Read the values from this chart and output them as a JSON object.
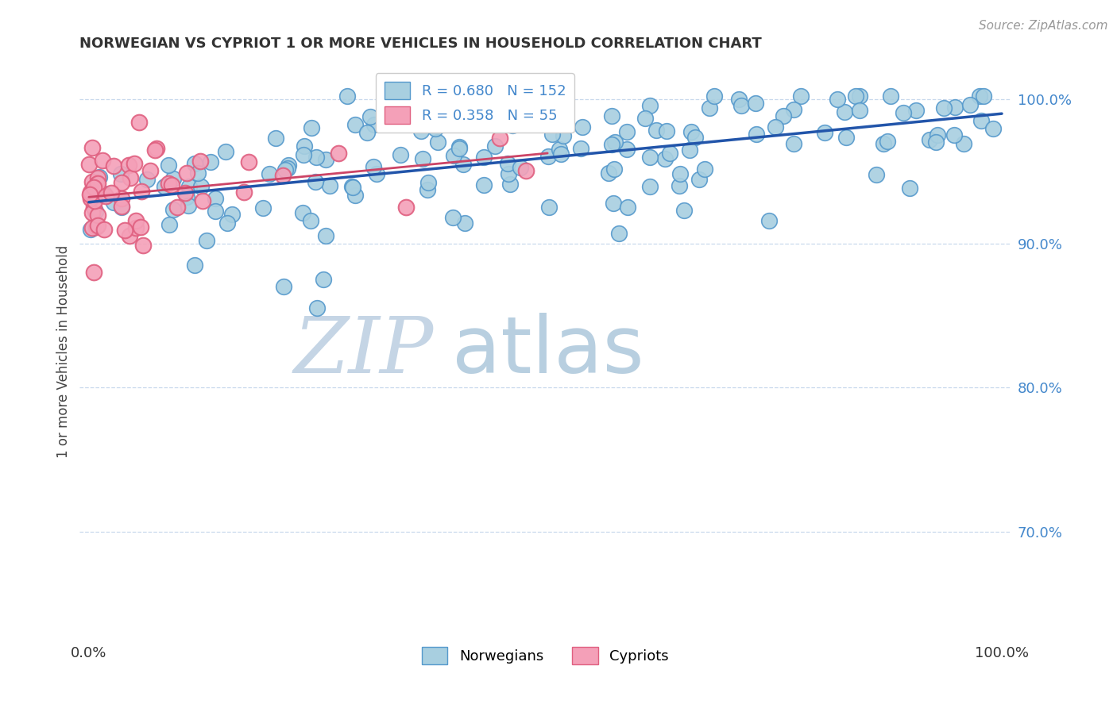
{
  "title": "NORWEGIAN VS CYPRIOT 1 OR MORE VEHICLES IN HOUSEHOLD CORRELATION CHART",
  "source_text": "Source: ZipAtlas.com",
  "ylabel": "1 or more Vehicles in Household",
  "xlim": [
    -0.01,
    1.01
  ],
  "ylim": [
    0.625,
    1.025
  ],
  "ytick_labels": [
    "70.0%",
    "80.0%",
    "90.0%",
    "100.0%"
  ],
  "ytick_values": [
    0.7,
    0.8,
    0.9,
    1.0
  ],
  "xtick_labels": [
    "0.0%",
    "",
    "",
    "",
    "",
    "",
    "",
    "",
    "",
    "",
    "100.0%"
  ],
  "xtick_values": [
    0.0,
    0.1,
    0.2,
    0.3,
    0.4,
    0.5,
    0.6,
    0.7,
    0.8,
    0.9,
    1.0
  ],
  "norwegian_color": "#a8cfe0",
  "cypriot_color": "#f4a0b8",
  "norwegian_edge_color": "#5599cc",
  "cypriot_edge_color": "#e06080",
  "trend_color_norwegian": "#2255aa",
  "trend_color_cypriot": "#cc4466",
  "R_norwegian": 0.68,
  "N_norwegian": 152,
  "R_cypriot": 0.358,
  "N_cypriot": 55,
  "legend_label_norwegian": "Norwegians",
  "legend_label_cypriot": "Cypriots",
  "watermark_zip": "ZIP",
  "watermark_atlas": "atlas",
  "watermark_color_zip": "#c5d5e5",
  "watermark_color_atlas": "#b8cfe0",
  "background_color": "#ffffff",
  "grid_color": "#c8d8ec",
  "title_color": "#333333",
  "axis_label_color": "#444444",
  "tick_color_blue": "#4488cc",
  "source_color": "#999999"
}
